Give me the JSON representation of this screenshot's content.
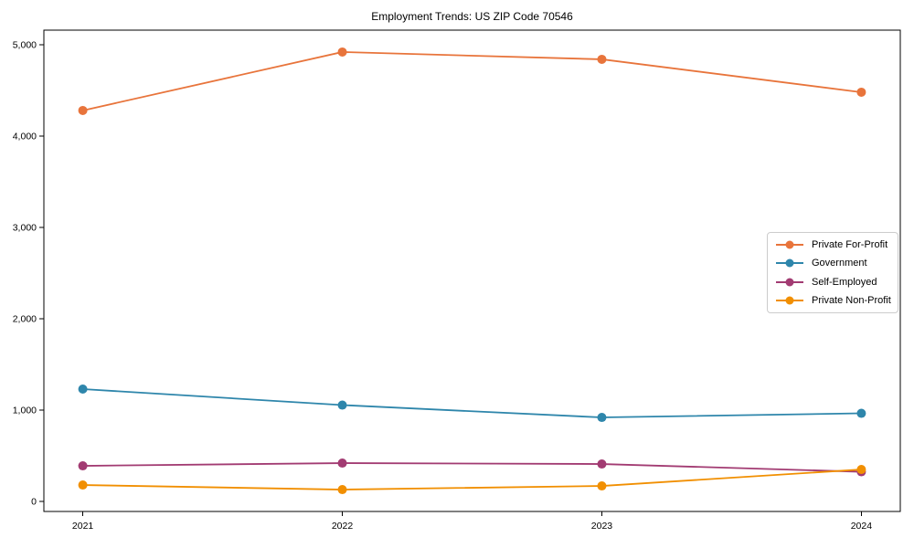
{
  "title": "Employment Trends: US ZIP Code 70546",
  "chart_data": {
    "type": "line",
    "title": "Employment Trends: US ZIP Code 70546",
    "categories": [
      "2021",
      "2022",
      "2023",
      "2024"
    ],
    "series": [
      {
        "name": "Private For-Profit",
        "color": "#E8743B",
        "values": [
          4280,
          4920,
          4840,
          4480
        ]
      },
      {
        "name": "Government",
        "color": "#2E86AB",
        "values": [
          1230,
          1055,
          920,
          965
        ]
      },
      {
        "name": "Self-Employed",
        "color": "#A23B72",
        "values": [
          390,
          420,
          410,
          325
        ]
      },
      {
        "name": "Private Non-Profit",
        "color": "#F18F01",
        "values": [
          180,
          130,
          170,
          350
        ]
      }
    ],
    "xlabel": "",
    "ylabel": "",
    "ylim": [
      0,
      5000
    ],
    "y_ticks": [
      0,
      1000,
      2000,
      3000,
      4000,
      5000
    ],
    "y_tick_labels": [
      "0",
      "1,000",
      "2,000",
      "3,000",
      "4,000",
      "5,000"
    ],
    "grid": false,
    "marker": "circle",
    "legend_position": "center-right",
    "axis_color": "#000000",
    "background": "#ffffff"
  }
}
